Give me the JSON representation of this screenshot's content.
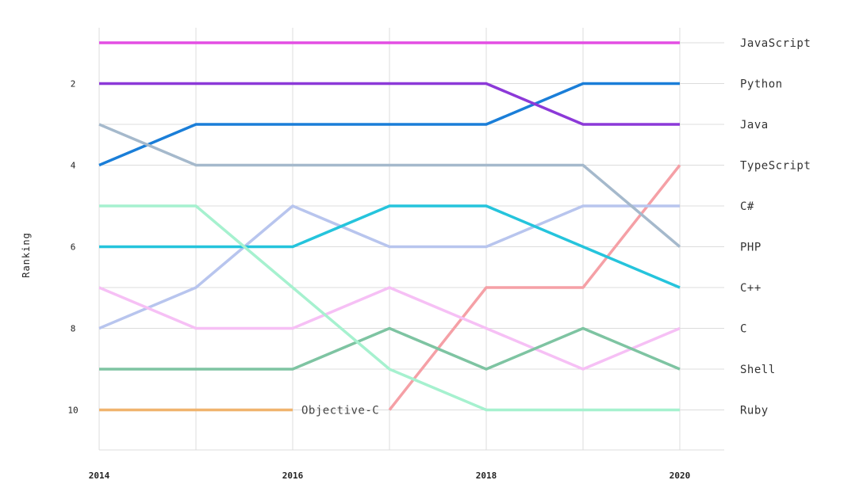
{
  "chart_data": {
    "type": "line",
    "ylabel": "Ranking",
    "x": [
      2014,
      2015,
      2016,
      2017,
      2018,
      2019,
      2020
    ],
    "x_tick_labels": [
      "2014",
      "2016",
      "2018",
      "2020"
    ],
    "y_tick_labels": [
      "2",
      "4",
      "6",
      "8",
      "10"
    ],
    "ylim": [
      11,
      1
    ],
    "grid": true,
    "series": [
      {
        "name": "JavaScript",
        "color": "#e34ee3",
        "values": [
          1,
          1,
          1,
          1,
          1,
          1,
          1
        ]
      },
      {
        "name": "Python",
        "color": "#1a7ed8",
        "values": [
          4,
          3,
          3,
          3,
          3,
          2,
          2
        ]
      },
      {
        "name": "Java",
        "color": "#8c39d8",
        "values": [
          2,
          2,
          2,
          2,
          2,
          3,
          3
        ]
      },
      {
        "name": "TypeScript",
        "color": "#f5a0a6",
        "values": [
          null,
          null,
          null,
          10,
          7,
          7,
          4
        ]
      },
      {
        "name": "C#",
        "color": "#b8c5ee",
        "values": [
          8,
          7,
          5,
          6,
          6,
          5,
          5
        ]
      },
      {
        "name": "PHP",
        "color": "#a5b9cc",
        "values": [
          3,
          4,
          4,
          4,
          4,
          4,
          6
        ]
      },
      {
        "name": "C++",
        "color": "#25c4dc",
        "values": [
          6,
          6,
          6,
          5,
          5,
          6,
          7
        ]
      },
      {
        "name": "C",
        "color": "#f6c0f5",
        "values": [
          7,
          8,
          8,
          7,
          8,
          9,
          8
        ]
      },
      {
        "name": "Shell",
        "color": "#7ec4a2",
        "values": [
          9,
          9,
          9,
          8,
          9,
          8,
          9
        ]
      },
      {
        "name": "Ruby",
        "color": "#a6f1cf",
        "values": [
          5,
          5,
          7,
          9,
          10,
          10,
          10
        ]
      },
      {
        "name": "Objective-C",
        "color": "#f0b46e",
        "values": [
          10,
          10,
          10,
          null,
          null,
          null,
          null
        ]
      }
    ],
    "right_labels": [
      {
        "rank": 1,
        "label": "JavaScript"
      },
      {
        "rank": 2,
        "label": "Python"
      },
      {
        "rank": 3,
        "label": "Java"
      },
      {
        "rank": 4,
        "label": "TypeScript"
      },
      {
        "rank": 5,
        "label": "C#"
      },
      {
        "rank": 6,
        "label": "PHP"
      },
      {
        "rank": 7,
        "label": "C++"
      },
      {
        "rank": 8,
        "label": "C"
      },
      {
        "rank": 9,
        "label": "Shell"
      },
      {
        "rank": 10,
        "label": "Ruby"
      }
    ],
    "annotations": [
      {
        "text": "Objective-C",
        "x": 2016,
        "y": 10
      }
    ]
  }
}
